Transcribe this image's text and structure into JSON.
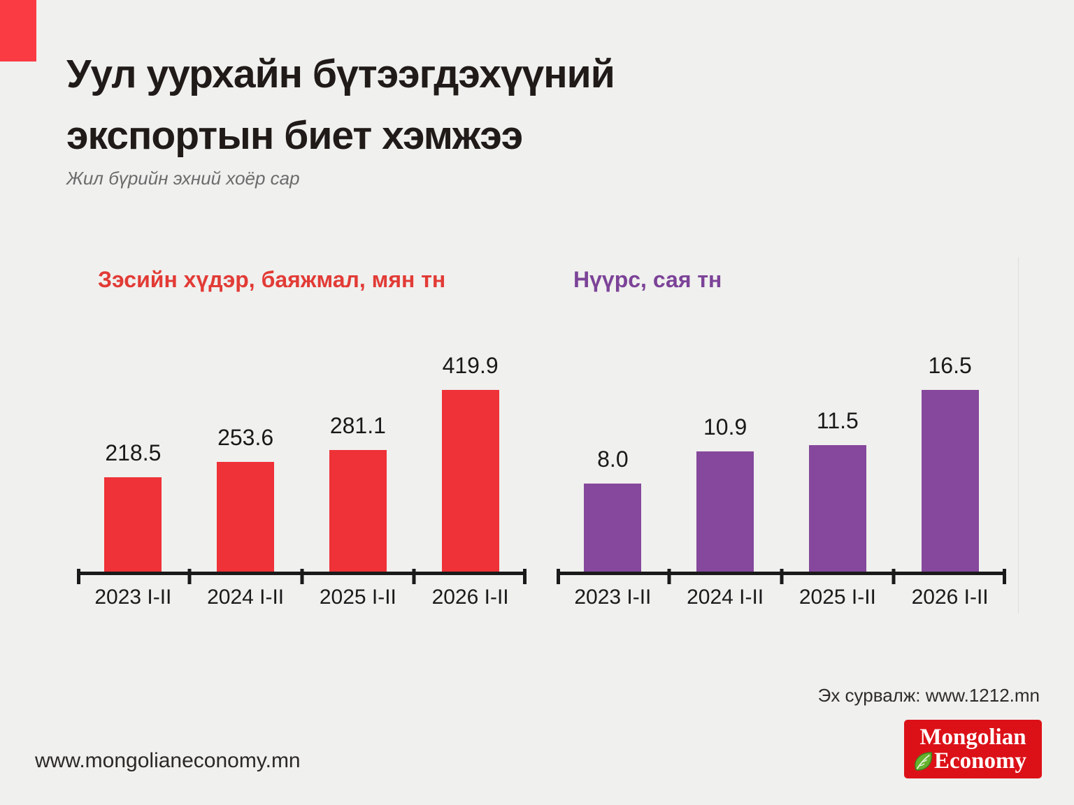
{
  "page": {
    "background_color": "#F0F0EE",
    "accent_square_color": "#FA3B43",
    "title_lines": [
      "Уул уурхайн бүтээгдэхүүний",
      "экспортын биет хэмжээ"
    ],
    "subtitle": "Жил бүрийн эхний хоёр сар",
    "source_text": "Эх сурвалж: www.1212.mn",
    "footer_url": "www.mongolianeconomy.mn"
  },
  "logo": {
    "line1": "Mongolian",
    "line2": "Economy",
    "background_color": "#DC1118",
    "text_color": "#FFFFFF",
    "leaf_icon_color": "#65B22E"
  },
  "chart_data": [
    {
      "type": "bar",
      "title": "Зэсийн хүдэр, баяжмал, мян тн",
      "title_color": "#E23B36",
      "bar_color": "#EE3237",
      "categories": [
        "2023 I-II",
        "2024 I-II",
        "2025 I-II",
        "2026 I-II"
      ],
      "values": [
        218.5,
        253.6,
        281.1,
        419.9
      ],
      "value_labels": [
        "218.5",
        "253.6",
        "281.1",
        "419.9"
      ],
      "ylim": [
        0,
        419.9
      ],
      "grid": false,
      "legend": "none",
      "value_labels_position": "above-bars"
    },
    {
      "type": "bar",
      "title": "Нүүрс, сая тн",
      "title_color": "#7C4398",
      "bar_color": "#85489C",
      "categories": [
        "2023 I-II",
        "2024 I-II",
        "2025 I-II",
        "2026 I-II"
      ],
      "values": [
        8.0,
        10.9,
        11.5,
        16.5
      ],
      "value_labels": [
        "8.0",
        "10.9",
        "11.5",
        "16.5"
      ],
      "ylim": [
        0,
        16.5
      ],
      "grid": false,
      "legend": "none",
      "value_labels_position": "above-bars"
    }
  ]
}
